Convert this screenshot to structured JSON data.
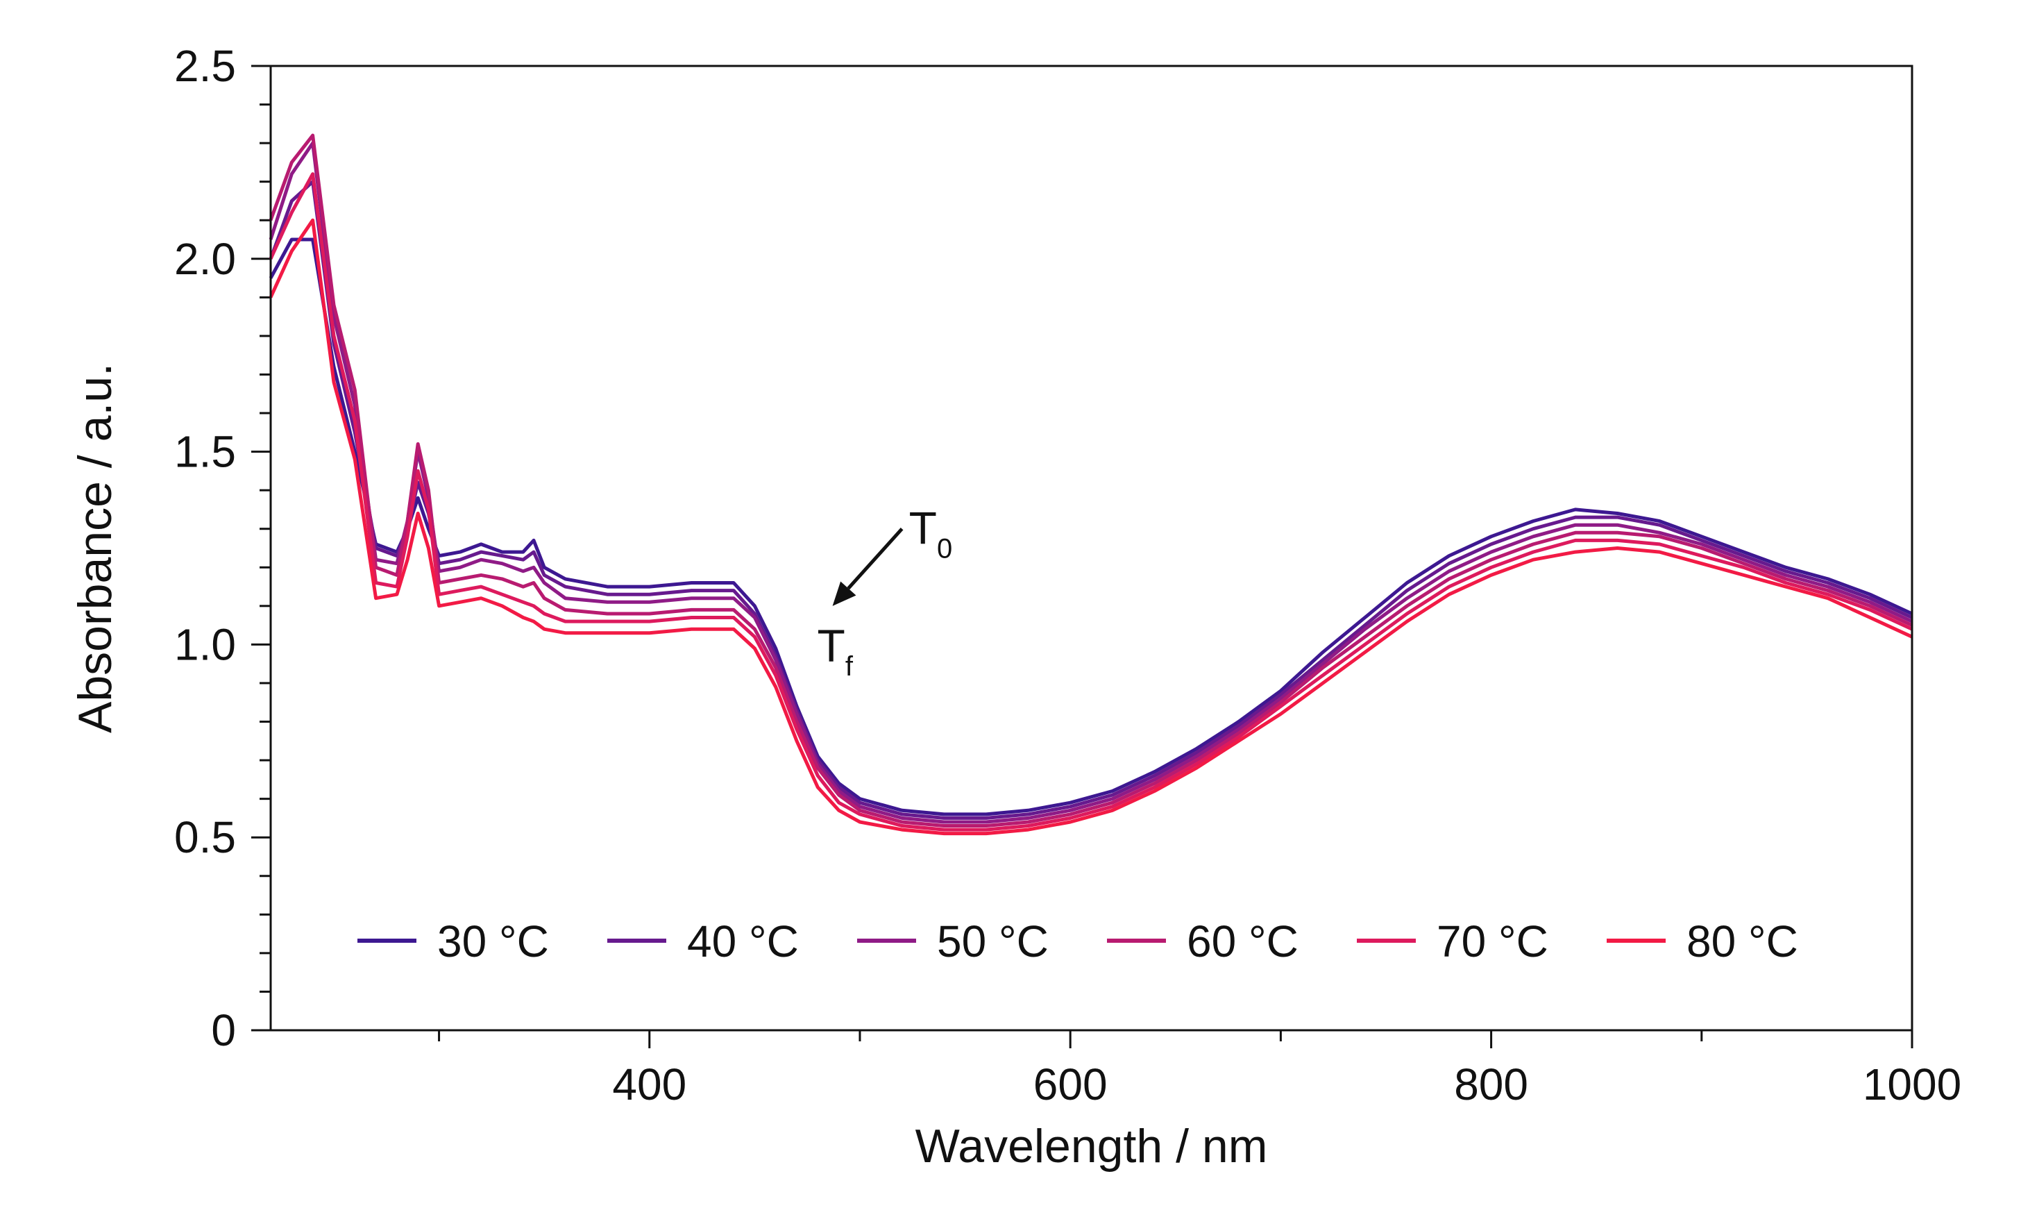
{
  "chart_data": {
    "type": "line",
    "title": "",
    "xlabel": "Wavelength / nm",
    "ylabel": "Absorbance / a.u.",
    "xlim": [
      220,
      1000
    ],
    "ylim": [
      0,
      2.5
    ],
    "x_major_ticks": [
      400,
      600,
      800,
      1000
    ],
    "x_minor_ticks": [
      300,
      500,
      700,
      900
    ],
    "x_tick_labels": [
      "400",
      "600",
      "800",
      "1000"
    ],
    "y_major_ticks": [
      0,
      0.5,
      1.0,
      1.5,
      2.0,
      2.5
    ],
    "y_tick_labels": [
      "0",
      "0.5",
      "1.0",
      "1.5",
      "2.0",
      "2.5"
    ],
    "legend_position": "bottom",
    "annotation": {
      "start": "T",
      "start_sub": "0",
      "end": "T",
      "end_sub": "f",
      "arrow_from": [
        520,
        1.3
      ],
      "arrow_to": [
        487,
        1.1
      ]
    },
    "x": [
      220,
      230,
      240,
      250,
      260,
      270,
      280,
      285,
      290,
      295,
      300,
      310,
      320,
      330,
      340,
      345,
      350,
      360,
      380,
      400,
      420,
      440,
      450,
      460,
      470,
      480,
      490,
      500,
      520,
      540,
      560,
      580,
      600,
      620,
      640,
      660,
      680,
      700,
      720,
      740,
      760,
      780,
      800,
      820,
      840,
      860,
      880,
      900,
      920,
      940,
      960,
      980,
      1000
    ],
    "series": [
      {
        "name": "30 °C",
        "color": "#3d1891",
        "values": [
          1.95,
          2.05,
          2.05,
          1.72,
          1.5,
          1.26,
          1.24,
          1.3,
          1.38,
          1.3,
          1.23,
          1.24,
          1.26,
          1.24,
          1.24,
          1.27,
          1.2,
          1.17,
          1.15,
          1.15,
          1.16,
          1.16,
          1.1,
          0.99,
          0.84,
          0.71,
          0.64,
          0.6,
          0.57,
          0.56,
          0.56,
          0.57,
          0.59,
          0.62,
          0.67,
          0.73,
          0.8,
          0.88,
          0.98,
          1.07,
          1.16,
          1.23,
          1.28,
          1.32,
          1.35,
          1.34,
          1.32,
          1.28,
          1.24,
          1.2,
          1.17,
          1.13,
          1.08
        ]
      },
      {
        "name": "40 °C",
        "color": "#671a8e",
        "values": [
          2.0,
          2.15,
          2.2,
          1.78,
          1.55,
          1.25,
          1.23,
          1.3,
          1.42,
          1.34,
          1.21,
          1.22,
          1.24,
          1.23,
          1.22,
          1.24,
          1.18,
          1.15,
          1.13,
          1.13,
          1.14,
          1.14,
          1.08,
          0.97,
          0.83,
          0.7,
          0.63,
          0.59,
          0.56,
          0.55,
          0.55,
          0.56,
          0.58,
          0.61,
          0.66,
          0.72,
          0.79,
          0.87,
          0.96,
          1.05,
          1.14,
          1.21,
          1.26,
          1.3,
          1.33,
          1.33,
          1.31,
          1.27,
          1.23,
          1.19,
          1.16,
          1.12,
          1.07
        ]
      },
      {
        "name": "50 °C",
        "color": "#8f1b86",
        "values": [
          2.05,
          2.22,
          2.3,
          1.85,
          1.62,
          1.22,
          1.21,
          1.32,
          1.5,
          1.38,
          1.19,
          1.2,
          1.22,
          1.21,
          1.19,
          1.2,
          1.16,
          1.12,
          1.11,
          1.11,
          1.12,
          1.12,
          1.07,
          0.96,
          0.82,
          0.69,
          0.62,
          0.58,
          0.55,
          0.54,
          0.54,
          0.55,
          0.57,
          0.6,
          0.65,
          0.71,
          0.78,
          0.86,
          0.95,
          1.04,
          1.12,
          1.19,
          1.24,
          1.28,
          1.31,
          1.31,
          1.29,
          1.26,
          1.22,
          1.18,
          1.15,
          1.11,
          1.06
        ]
      },
      {
        "name": "60 °C",
        "color": "#b81b70",
        "values": [
          2.1,
          2.25,
          2.32,
          1.88,
          1.66,
          1.2,
          1.18,
          1.32,
          1.52,
          1.4,
          1.16,
          1.17,
          1.18,
          1.17,
          1.15,
          1.16,
          1.12,
          1.09,
          1.08,
          1.08,
          1.09,
          1.09,
          1.04,
          0.94,
          0.8,
          0.68,
          0.61,
          0.57,
          0.54,
          0.53,
          0.53,
          0.54,
          0.56,
          0.59,
          0.64,
          0.7,
          0.77,
          0.85,
          0.94,
          1.02,
          1.1,
          1.17,
          1.22,
          1.26,
          1.29,
          1.29,
          1.28,
          1.25,
          1.21,
          1.17,
          1.14,
          1.1,
          1.05
        ]
      },
      {
        "name": "70 °C",
        "color": "#dd1a5d",
        "values": [
          2.0,
          2.12,
          2.22,
          1.8,
          1.58,
          1.16,
          1.15,
          1.28,
          1.45,
          1.35,
          1.13,
          1.14,
          1.15,
          1.13,
          1.11,
          1.1,
          1.08,
          1.06,
          1.06,
          1.06,
          1.07,
          1.07,
          1.02,
          0.92,
          0.78,
          0.66,
          0.59,
          0.56,
          0.53,
          0.52,
          0.52,
          0.53,
          0.55,
          0.58,
          0.63,
          0.69,
          0.76,
          0.84,
          0.92,
          1.0,
          1.08,
          1.15,
          1.2,
          1.24,
          1.27,
          1.27,
          1.26,
          1.23,
          1.2,
          1.16,
          1.13,
          1.09,
          1.04
        ]
      },
      {
        "name": "80 °C",
        "color": "#f21a45",
        "values": [
          1.9,
          2.02,
          2.1,
          1.68,
          1.48,
          1.12,
          1.13,
          1.22,
          1.34,
          1.25,
          1.1,
          1.11,
          1.12,
          1.1,
          1.07,
          1.06,
          1.04,
          1.03,
          1.03,
          1.03,
          1.04,
          1.04,
          0.99,
          0.89,
          0.75,
          0.63,
          0.57,
          0.54,
          0.52,
          0.51,
          0.51,
          0.52,
          0.54,
          0.57,
          0.62,
          0.68,
          0.75,
          0.82,
          0.9,
          0.98,
          1.06,
          1.13,
          1.18,
          1.22,
          1.24,
          1.25,
          1.24,
          1.21,
          1.18,
          1.15,
          1.12,
          1.07,
          1.02
        ]
      }
    ]
  }
}
